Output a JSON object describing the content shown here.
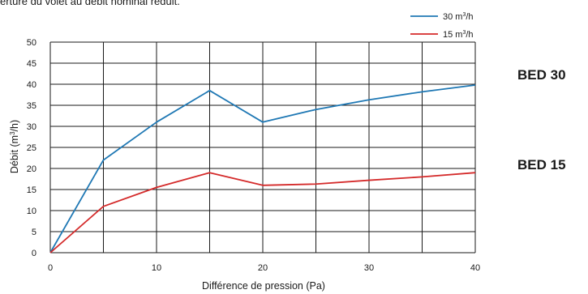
{
  "caption": "erture du volet au débit nominal réduit.",
  "models": [
    "BED 30",
    "BED 15"
  ],
  "chart_data": {
    "type": "line",
    "xlabel": "Différence de pression (Pa)",
    "ylabel_parts": [
      "Débit (m",
      "3",
      "/h)"
    ],
    "xlim": [
      0,
      40
    ],
    "ylim": [
      0,
      50
    ],
    "xticks": [
      0,
      10,
      20,
      30,
      40
    ],
    "yticks": [
      0,
      5,
      10,
      15,
      20,
      25,
      30,
      35,
      40,
      45,
      50
    ],
    "grid_x": [
      0,
      5,
      10,
      15,
      20,
      25,
      30,
      35,
      40
    ],
    "grid": true,
    "legend_position": "top-right",
    "series": [
      {
        "name_parts": [
          "30 m",
          "3",
          "/h"
        ],
        "color": "#1f78b4",
        "x": [
          0,
          5,
          10,
          15,
          20,
          25,
          30,
          35,
          40
        ],
        "y": [
          0,
          22,
          31,
          38.5,
          31,
          34,
          36.3,
          38.2,
          39.8
        ]
      },
      {
        "name_parts": [
          "15 m",
          "3",
          "/h"
        ],
        "color": "#d42a2a",
        "x": [
          0,
          5,
          10,
          15,
          20,
          25,
          30,
          35,
          40
        ],
        "y": [
          0,
          11,
          15.5,
          19,
          16,
          16.3,
          17.2,
          18,
          19
        ]
      }
    ]
  }
}
